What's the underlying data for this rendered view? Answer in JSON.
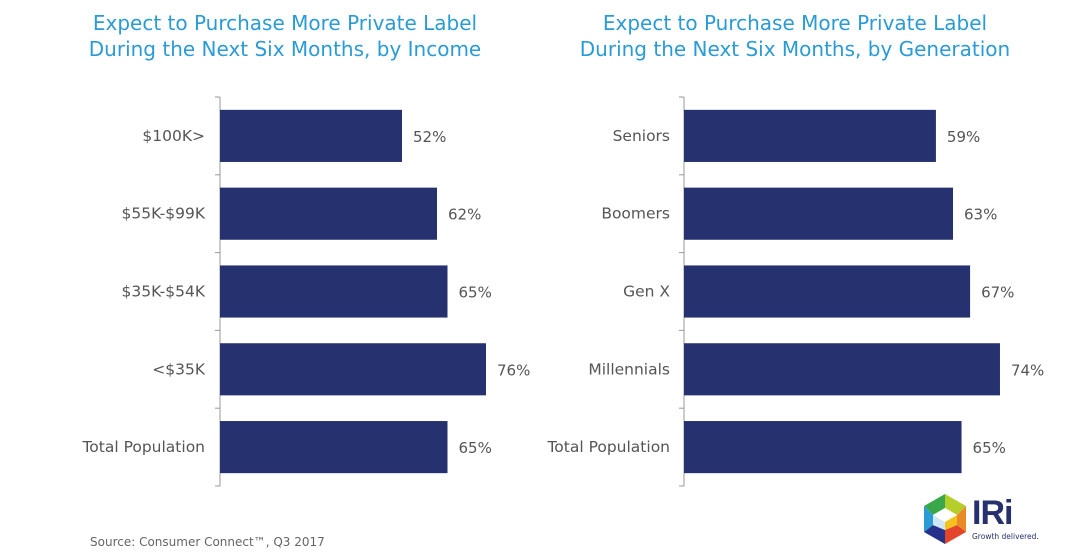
{
  "chart_data": [
    {
      "type": "bar",
      "orientation": "horizontal",
      "title": "Expect to Purchase More Private Label\nDuring the Next Six Months, by Income",
      "categories": [
        "$100K>",
        "$55K-$99K",
        "$35K-$54K",
        "<$35K",
        "Total Population"
      ],
      "values": [
        52,
        62,
        65,
        76,
        65
      ],
      "data_labels": [
        "52%",
        "62%",
        "65%",
        "76%",
        "65%"
      ],
      "xlabel": "",
      "ylabel": "",
      "xlim": [
        0,
        100
      ],
      "grid": false,
      "legend": "none",
      "bar_color": "#263170"
    },
    {
      "type": "bar",
      "orientation": "horizontal",
      "title": "Expect to Purchase More Private Label\nDuring the Next Six Months, by Generation",
      "categories": [
        "Seniors",
        "Boomers",
        "Gen X",
        "Millennials",
        "Total Population"
      ],
      "values": [
        59,
        63,
        67,
        74,
        65
      ],
      "data_labels": [
        "59%",
        "63%",
        "67%",
        "74%",
        "65%"
      ],
      "xlabel": "",
      "ylabel": "",
      "xlim": [
        0,
        100
      ],
      "grid": false,
      "legend": "none",
      "bar_color": "#263170"
    }
  ],
  "footer": {
    "source": "Source: Consumer Connect™, Q3 2017",
    "logo_text": "IRi",
    "logo_tagline": "Growth delivered.",
    "logo_icon": "hexagon-cube-icon"
  }
}
